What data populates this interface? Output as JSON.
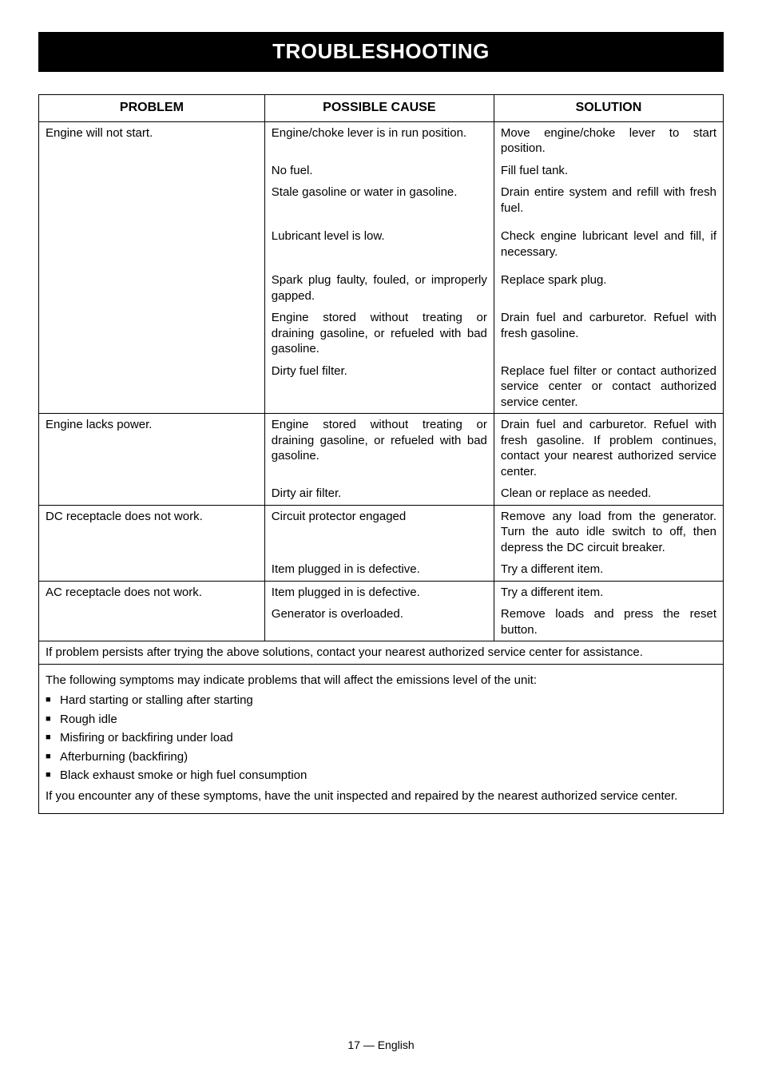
{
  "title": "TROUBLESHOOTING",
  "columns": {
    "problem": "PROBLEM",
    "cause": "POSSIBLE CAUSE",
    "solution": "SOLUTION"
  },
  "groups": [
    {
      "problem": "Engine will not start.",
      "rows": [
        {
          "cause": "Engine/choke lever is in run position.",
          "solution": "Move engine/choke lever to start position."
        },
        {
          "cause": "No fuel.",
          "solution": "Fill fuel tank."
        },
        {
          "cause": "Stale gasoline or water in gasoline.",
          "solution": "Drain entire system and refill with fresh fuel."
        },
        {
          "cause": "Lubricant level is low.",
          "solution": "Check engine lubricant level and fill, if necessary.",
          "gap": true
        },
        {
          "cause": "Spark plug faulty, fouled, or improperly gapped.",
          "solution": "Replace spark plug.",
          "gap": true
        },
        {
          "cause": "Engine stored without treating or draining gasoline, or refueled with bad gasoline.",
          "solution": "Drain fuel and carburetor. Refuel with fresh gasoline."
        },
        {
          "cause": "Dirty fuel filter.",
          "solution": "Replace fuel filter or contact authorized service center or contact authorized service center."
        }
      ]
    },
    {
      "problem": "Engine lacks power.",
      "rows": [
        {
          "cause": "Engine stored without treating or draining gasoline, or refueled with bad gasoline.",
          "solution": "Drain fuel and carburetor. Refuel with fresh gasoline. If problem continues, contact your nearest authorized service center."
        },
        {
          "cause": "Dirty air filter.",
          "solution": "Clean or replace as needed."
        }
      ]
    },
    {
      "problem": "DC receptacle does not work.",
      "rows": [
        {
          "cause": "Circuit protector engaged",
          "solution": "Remove any load from the generator. Turn the auto idle switch to off, then depress the DC circuit breaker."
        },
        {
          "cause": "Item plugged in is defective.",
          "solution": "Try a different item."
        }
      ]
    },
    {
      "problem": "AC receptacle does not work.",
      "rows": [
        {
          "cause": "Item plugged in is defective.",
          "solution": "Try a different item."
        },
        {
          "cause": "Generator is overloaded.",
          "solution": "Remove loads and press the reset button."
        }
      ]
    }
  ],
  "footer_note": "If problem persists after trying the above solutions, contact your nearest authorized service center for assistance.",
  "symptoms_intro": "The following symptoms may indicate problems that will affect the emissions level of the unit:",
  "symptoms": [
    "Hard starting or stalling after starting",
    "Rough idle",
    "Misfiring or backfiring under load",
    "Afterburning (backfiring)",
    "Black exhaust smoke or high fuel consumption"
  ],
  "symptoms_outro": "If you encounter any of these symptoms, have the unit inspected and repaired by the nearest authorized service center.",
  "page_footer": "17 — English"
}
